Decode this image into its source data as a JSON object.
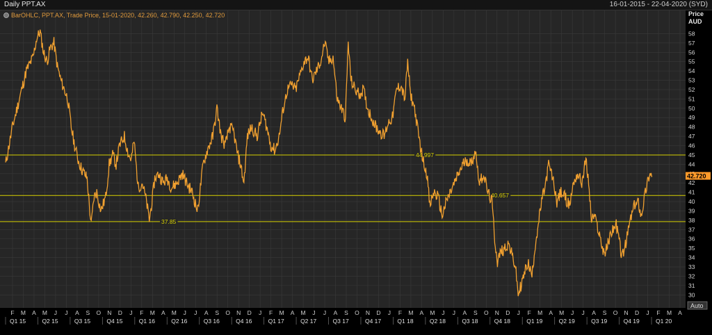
{
  "header": {
    "title": "Daily PPT.AX",
    "date_range": "16-01-2015 - 22-04-2020 (SYD)",
    "legend": "BarOHLC, PPT.AX, Trade Price, 15-01-2020, 42.260, 42.790, 42.250, 42.720",
    "price_label_1": "Price",
    "price_label_2": "AUD",
    "auto_button": "Auto"
  },
  "colors": {
    "background": "#262626",
    "price_line": "#f0a030",
    "hline": "#d7d000",
    "last_price_badge": "#ff9a2a"
  },
  "chart_data": {
    "type": "line",
    "series": [
      {
        "values": [
          [
            0,
            44.0
          ],
          [
            10,
            48.0
          ],
          [
            20,
            51.0
          ],
          [
            30,
            54.0
          ],
          [
            40,
            55.5
          ],
          [
            45,
            57.5
          ],
          [
            50,
            58.2
          ],
          [
            55,
            56.0
          ],
          [
            60,
            55.0
          ],
          [
            65,
            56.5
          ],
          [
            70,
            57.0
          ],
          [
            75,
            54.5
          ],
          [
            80,
            53.0
          ],
          [
            90,
            51.0
          ],
          [
            95,
            48.0
          ],
          [
            100,
            46.0
          ],
          [
            105,
            44.5
          ],
          [
            110,
            43.5
          ],
          [
            118,
            42.5
          ],
          [
            122,
            39.0
          ],
          [
            124,
            37.5
          ],
          [
            128,
            40.5
          ],
          [
            132,
            41.0
          ],
          [
            138,
            39.0
          ],
          [
            145,
            40.5
          ],
          [
            150,
            44.0
          ],
          [
            155,
            45.0
          ],
          [
            160,
            44.0
          ],
          [
            165,
            46.0
          ],
          [
            172,
            47.0
          ],
          [
            178,
            45.0
          ],
          [
            182,
            44.5
          ],
          [
            186,
            46.5
          ],
          [
            192,
            41.5
          ],
          [
            198,
            42.0
          ],
          [
            204,
            40.0
          ],
          [
            208,
            38.0
          ],
          [
            212,
            40.0
          ],
          [
            216,
            42.5
          ],
          [
            222,
            43.0
          ],
          [
            228,
            42.0
          ],
          [
            234,
            42.5
          ],
          [
            240,
            41.5
          ],
          [
            248,
            42.0
          ],
          [
            256,
            43.0
          ],
          [
            262,
            42.0
          ],
          [
            270,
            41.0
          ],
          [
            278,
            39.0
          ],
          [
            286,
            44.0
          ],
          [
            292,
            45.5
          ],
          [
            300,
            47.0
          ],
          [
            306,
            50.0
          ],
          [
            312,
            47.0
          ],
          [
            318,
            46.0
          ],
          [
            324,
            48.0
          ],
          [
            330,
            47.5
          ],
          [
            336,
            45.0
          ],
          [
            340,
            44.0
          ],
          [
            345,
            42.0
          ],
          [
            350,
            47.0
          ],
          [
            356,
            48.0
          ],
          [
            364,
            47.0
          ],
          [
            372,
            49.5
          ],
          [
            378,
            48.0
          ],
          [
            384,
            46.0
          ],
          [
            390,
            45.5
          ],
          [
            396,
            47.0
          ],
          [
            402,
            50.0
          ],
          [
            408,
            52.0
          ],
          [
            414,
            52.5
          ],
          [
            420,
            52.0
          ],
          [
            426,
            53.5
          ],
          [
            432,
            55.0
          ],
          [
            438,
            55.5
          ],
          [
            444,
            53.0
          ],
          [
            450,
            54.0
          ],
          [
            456,
            55.0
          ],
          [
            462,
            57.0
          ],
          [
            468,
            55.0
          ],
          [
            474,
            55.5
          ],
          [
            480,
            51.0
          ],
          [
            486,
            50.0
          ],
          [
            492,
            49.0
          ],
          [
            496,
            57.0
          ],
          [
            500,
            53.0
          ],
          [
            506,
            52.0
          ],
          [
            512,
            51.5
          ],
          [
            518,
            52.0
          ],
          [
            524,
            50.0
          ],
          [
            530,
            49.0
          ],
          [
            536,
            48.0
          ],
          [
            542,
            47.5
          ],
          [
            548,
            47.0
          ],
          [
            554,
            48.5
          ],
          [
            560,
            49.0
          ],
          [
            566,
            52.0
          ],
          [
            572,
            52.5
          ],
          [
            578,
            51.0
          ],
          [
            582,
            55.0
          ],
          [
            586,
            51.5
          ],
          [
            592,
            50.0
          ],
          [
            598,
            47.0
          ],
          [
            604,
            44.5
          ],
          [
            610,
            43.0
          ],
          [
            614,
            39.5
          ],
          [
            620,
            41.0
          ],
          [
            626,
            40.5
          ],
          [
            632,
            38.5
          ],
          [
            638,
            40.0
          ],
          [
            644,
            41.0
          ],
          [
            650,
            42.0
          ],
          [
            656,
            43.0
          ],
          [
            662,
            44.0
          ],
          [
            668,
            44.5
          ],
          [
            674,
            44.0
          ],
          [
            680,
            45.5
          ],
          [
            686,
            42.0
          ],
          [
            692,
            43.0
          ],
          [
            698,
            41.0
          ],
          [
            704,
            40.0
          ],
          [
            708,
            36.0
          ],
          [
            712,
            33.5
          ],
          [
            716,
            34.5
          ],
          [
            722,
            35.0
          ],
          [
            728,
            35.5
          ],
          [
            734,
            34.0
          ],
          [
            738,
            33.0
          ],
          [
            742,
            30.0
          ],
          [
            746,
            31.0
          ],
          [
            750,
            32.0
          ],
          [
            756,
            33.5
          ],
          [
            762,
            32.0
          ],
          [
            766,
            35.0
          ],
          [
            772,
            38.0
          ],
          [
            776,
            40.0
          ],
          [
            782,
            42.0
          ],
          [
            786,
            44.0
          ],
          [
            792,
            42.5
          ],
          [
            798,
            40.0
          ],
          [
            804,
            41.0
          ],
          [
            810,
            40.5
          ],
          [
            816,
            39.5
          ],
          [
            822,
            42.0
          ],
          [
            828,
            43.0
          ],
          [
            834,
            42.0
          ],
          [
            840,
            44.5
          ],
          [
            844,
            42.0
          ],
          [
            848,
            38.0
          ],
          [
            852,
            38.5
          ],
          [
            858,
            37.0
          ],
          [
            864,
            35.0
          ],
          [
            868,
            34.5
          ],
          [
            872,
            35.5
          ],
          [
            878,
            37.0
          ],
          [
            884,
            37.5
          ],
          [
            888,
            36.0
          ],
          [
            892,
            34.0
          ],
          [
            898,
            35.5
          ],
          [
            904,
            38.0
          ],
          [
            910,
            39.5
          ],
          [
            916,
            40.0
          ],
          [
            920,
            38.5
          ],
          [
            926,
            41.0
          ],
          [
            932,
            43.0
          ],
          [
            936,
            42.72
          ]
        ]
      }
    ],
    "x_tick_labels": [
      "F",
      "M",
      "A",
      "M",
      "J",
      "J",
      "A",
      "S",
      "O",
      "N",
      "D",
      "J",
      "F",
      "M",
      "A",
      "M",
      "J",
      "J",
      "A",
      "S",
      "O",
      "N",
      "D",
      "J",
      "F",
      "M",
      "A",
      "M",
      "J",
      "J",
      "A",
      "S",
      "O",
      "N",
      "D",
      "J",
      "F",
      "M",
      "A",
      "M",
      "J",
      "J",
      "A",
      "S",
      "O",
      "N",
      "D",
      "J",
      "F",
      "M",
      "A",
      "M",
      "J",
      "J",
      "A",
      "S",
      "O",
      "N",
      "D",
      "J",
      "F",
      "M",
      "A"
    ],
    "quarter_labels": [
      "Q1 15",
      "Q2 15",
      "Q3 15",
      "Q4 15",
      "Q1 16",
      "Q2 16",
      "Q3 16",
      "Q4 16",
      "Q1 17",
      "Q2 17",
      "Q3 17",
      "Q4 17",
      "Q1 18",
      "Q2 18",
      "Q3 18",
      "Q4 18",
      "Q1 19",
      "Q2 19",
      "Q3 19",
      "Q4 19",
      "Q1 20"
    ],
    "y_ticks": [
      30,
      31,
      32,
      33,
      34,
      35,
      36,
      37,
      38,
      39,
      40,
      41,
      42,
      43,
      44,
      45,
      46,
      47,
      48,
      49,
      50,
      51,
      52,
      53,
      54,
      55,
      56,
      57,
      58
    ],
    "ylim": [
      29.5,
      59
    ],
    "horizontal_lines": [
      {
        "value": 44.997,
        "label": "44.997"
      },
      {
        "value": 40.657,
        "label": "40.657"
      },
      {
        "value": 37.85,
        "label": "37.85"
      }
    ],
    "last_price": "42.720",
    "grid": true
  }
}
